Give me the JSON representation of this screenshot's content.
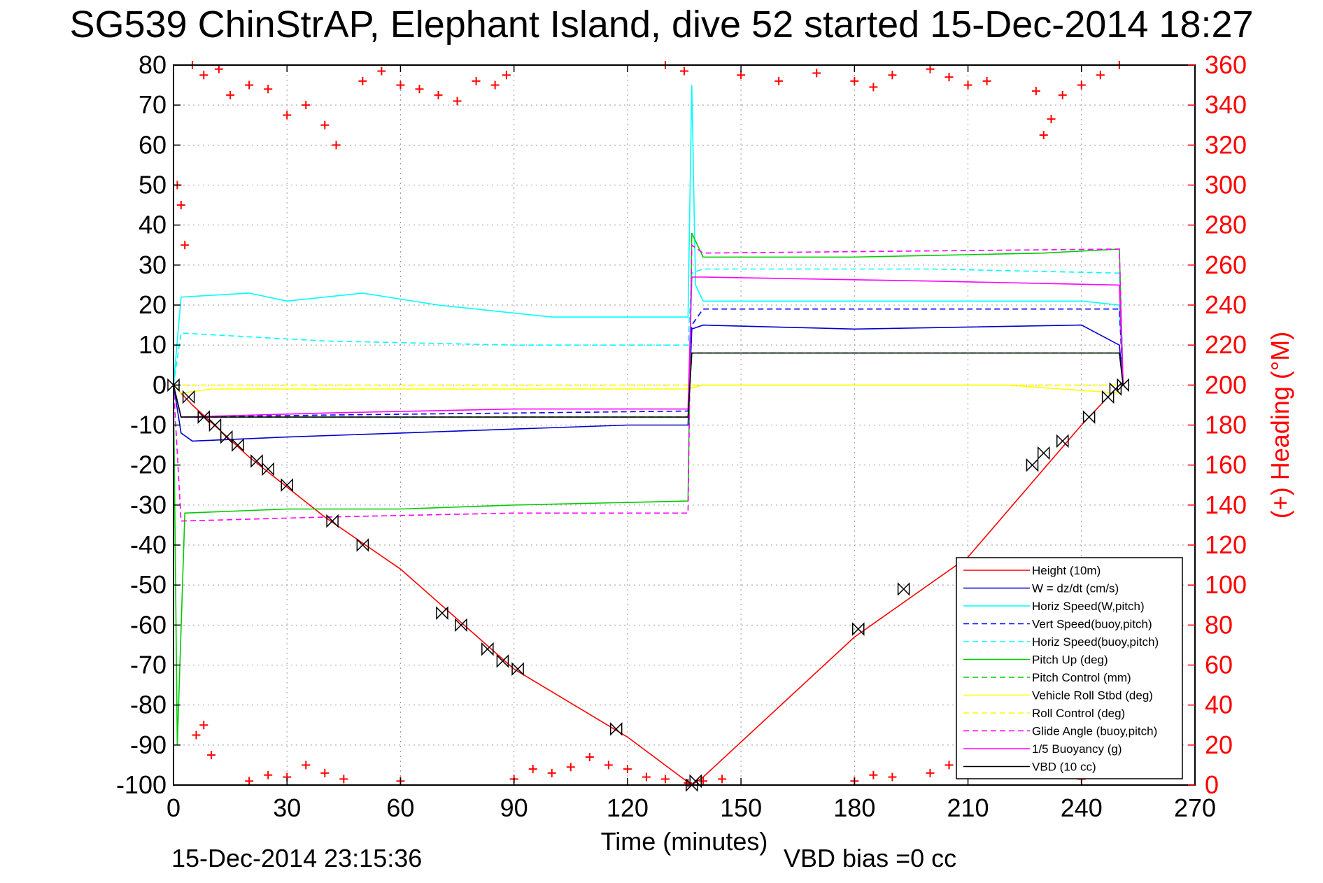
{
  "chart_data": {
    "type": "line",
    "title": "SG539 ChinStrAP, Elephant Island, dive 52 started 15-Dec-2014 18:27",
    "xlabel": "Time (minutes)",
    "ylabel_right": "(+) Heading (°M)",
    "xlim": [
      0,
      270
    ],
    "ylim": [
      -100,
      80
    ],
    "ylim_right": [
      0,
      360
    ],
    "xticks": [
      0,
      30,
      60,
      90,
      120,
      150,
      180,
      210,
      240,
      270
    ],
    "yticks": [
      80,
      70,
      60,
      50,
      40,
      30,
      20,
      10,
      0,
      -10,
      -20,
      -30,
      -40,
      -50,
      -60,
      -70,
      -80,
      -90,
      -100
    ],
    "yticks_right": [
      360,
      340,
      320,
      300,
      280,
      260,
      240,
      220,
      200,
      180,
      160,
      140,
      120,
      100,
      80,
      60,
      40,
      20,
      0
    ],
    "grid": true,
    "legend_position": "lower-right",
    "series": [
      {
        "name": "Height (10m)",
        "color": "#ff0000",
        "dash": "solid",
        "x": [
          0,
          5,
          20,
          40,
          60,
          90,
          120,
          137,
          140,
          180,
          210,
          240,
          250
        ],
        "y": [
          0,
          -5,
          -18,
          -33,
          -46,
          -71,
          -88,
          -100,
          -98,
          -63,
          -43,
          -10,
          0
        ]
      },
      {
        "name": "W = dz/dt (cm/s)",
        "color": "#0000cc",
        "dash": "solid",
        "x": [
          0,
          2,
          5,
          30,
          60,
          90,
          120,
          136,
          137,
          140,
          180,
          240,
          250,
          251
        ],
        "y": [
          0,
          -12,
          -14,
          -13,
          -12,
          -11,
          -10,
          -10,
          14,
          15,
          14,
          15,
          10,
          0
        ]
      },
      {
        "name": "Horiz Speed(W,pitch)",
        "color": "#00ffff",
        "dash": "solid",
        "x": [
          0,
          2,
          20,
          30,
          50,
          70,
          100,
          120,
          136,
          137,
          138,
          140,
          180,
          240,
          250,
          251
        ],
        "y": [
          0,
          22,
          23,
          21,
          23,
          20,
          17,
          17,
          17,
          75,
          25,
          21,
          21,
          21,
          20,
          0
        ]
      },
      {
        "name": "Vert Speed(buoy,pitch)",
        "color": "#0000ff",
        "dash": "dashed",
        "x": [
          0,
          2,
          40,
          90,
          136,
          137,
          140,
          240,
          250,
          251
        ],
        "y": [
          0,
          -8,
          -7.5,
          -7,
          -6.5,
          15,
          19,
          19,
          19,
          0
        ]
      },
      {
        "name": "Horiz Speed(buoy,pitch)",
        "color": "#00ffff",
        "dash": "dashed",
        "x": [
          0,
          2,
          40,
          90,
          136,
          137,
          140,
          200,
          250,
          251
        ],
        "y": [
          0,
          13,
          11,
          10,
          10,
          28,
          29,
          29,
          28,
          0
        ]
      },
      {
        "name": "Pitch Up (deg)",
        "color": "#00cc00",
        "dash": "solid",
        "x": [
          0,
          1,
          3,
          30,
          60,
          90,
          136,
          137,
          140,
          180,
          230,
          250,
          251
        ],
        "y": [
          0,
          -90,
          -32,
          -31,
          -31,
          -30,
          -29,
          38,
          32,
          32,
          33,
          34,
          0
        ]
      },
      {
        "name": "Pitch Control (mm)",
        "color": "#00cc00",
        "dash": "dashed",
        "x": [
          0,
          2,
          136,
          137,
          140,
          250
        ],
        "y": [
          0,
          -8,
          -8,
          8,
          8,
          8
        ]
      },
      {
        "name": "Vehicle Roll Stbd (deg)",
        "color": "#ffff00",
        "dash": "solid",
        "x": [
          0,
          2,
          10,
          30,
          60,
          90,
          120,
          136,
          140,
          180,
          220,
          250
        ],
        "y": [
          0,
          -2,
          -1,
          -1,
          -1,
          -1,
          -1,
          -1,
          0,
          0,
          0,
          -2
        ]
      },
      {
        "name": "Roll Control (deg)",
        "color": "#ffff00",
        "dash": "dashed",
        "x": [
          0,
          2,
          136,
          140,
          250
        ],
        "y": [
          0,
          0,
          0,
          0,
          0
        ]
      },
      {
        "name": "Glide Angle (buoy,pitch)",
        "color": "#ff00ff",
        "dash": "dashed",
        "x": [
          0,
          2,
          40,
          90,
          136,
          137,
          140,
          250,
          251
        ],
        "y": [
          0,
          -34,
          -33,
          -32,
          -32,
          35,
          33,
          34,
          0
        ]
      },
      {
        "name": "1/5 Buoyancy (g)",
        "color": "#ff00ff",
        "dash": "solid",
        "x": [
          0,
          2,
          40,
          90,
          136,
          137,
          140,
          200,
          250,
          251
        ],
        "y": [
          0,
          -8,
          -7,
          -6,
          -6,
          27,
          27,
          26,
          25,
          0
        ]
      },
      {
        "name": "VBD (10 cc)",
        "color": "#000000",
        "dash": "solid",
        "x": [
          0,
          2,
          136,
          137,
          140,
          250,
          251
        ],
        "y": [
          0,
          -8,
          -8,
          8,
          8,
          8,
          0
        ]
      }
    ],
    "heading_points": {
      "name": "Heading",
      "color": "#ff0000",
      "marker": "+",
      "axis": "right",
      "x": [
        1,
        2,
        3,
        5,
        8,
        12,
        15,
        20,
        25,
        30,
        35,
        40,
        43,
        50,
        55,
        60,
        65,
        70,
        75,
        80,
        85,
        88,
        130,
        135,
        150,
        160,
        170,
        180,
        185,
        190,
        200,
        205,
        210,
        215,
        228,
        230,
        232,
        235,
        240,
        245,
        250,
        6,
        8,
        10,
        20,
        25,
        30,
        35,
        40,
        45,
        60,
        90,
        95,
        100,
        105,
        110,
        115,
        120,
        125,
        130,
        136,
        140,
        145,
        180,
        185,
        190,
        200,
        205,
        210,
        215,
        240
      ],
      "y": [
        300,
        290,
        270,
        360,
        355,
        358,
        345,
        350,
        348,
        335,
        340,
        330,
        320,
        352,
        357,
        350,
        348,
        345,
        342,
        352,
        350,
        355,
        360,
        357,
        355,
        352,
        356,
        352,
        349,
        355,
        358,
        354,
        350,
        352,
        347,
        325,
        333,
        345,
        350,
        355,
        360,
        25,
        30,
        15,
        2,
        5,
        4,
        10,
        6,
        3,
        2,
        3,
        8,
        6,
        9,
        14,
        10,
        8,
        4,
        3,
        1,
        2,
        3,
        2,
        5,
        4,
        6,
        10,
        15,
        6,
        3
      ]
    },
    "vbd_markers": {
      "marker": "bowtie",
      "x": [
        0,
        4,
        8,
        11,
        14,
        17,
        22,
        25,
        30,
        42,
        50,
        71,
        76,
        83,
        87,
        91,
        117,
        137,
        138,
        181,
        193,
        227,
        230,
        235,
        242,
        247,
        249,
        251
      ],
      "y": [
        0,
        -3,
        -8,
        -10,
        -13,
        -15,
        -19,
        -21,
        -25,
        -34,
        -40,
        -57,
        -60,
        -66,
        -69,
        -71,
        -86,
        -100,
        -99,
        -61,
        -51,
        -20,
        -17,
        -14,
        -8,
        -3,
        -1,
        0
      ]
    }
  },
  "footer": {
    "timestamp": "15-Dec-2014 23:15:36",
    "vbd_bias": "VBD bias =0 cc"
  }
}
